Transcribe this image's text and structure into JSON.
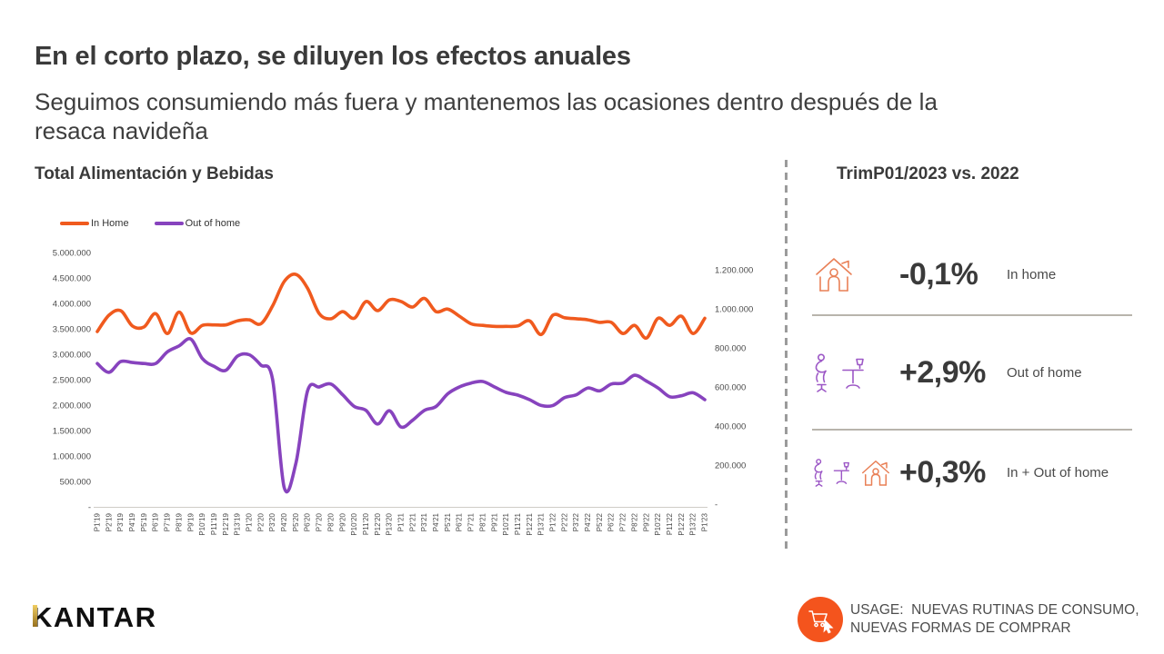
{
  "slide": {
    "title": "En el corto plazo, se diluyen los efectos anuales",
    "subtitle_line1": "Seguimos consumiendo más fuera y mantenemos las ocasiones dentro después de la",
    "subtitle_line2": "resaca navideña"
  },
  "chart_data": {
    "type": "line",
    "title": "Total Alimentación y Bebidas",
    "grid": false,
    "legend_position": "top-left",
    "x": [
      "P1'19",
      "P2'19",
      "P3'19",
      "P4'19",
      "P5'19",
      "P6'19",
      "P7'19",
      "P8'19",
      "P9'19",
      "P10'19",
      "P11'19",
      "P12'19",
      "P13'19",
      "P1'20",
      "P2'20",
      "P3'20",
      "P4'20",
      "P5'20",
      "P6'20",
      "P7'20",
      "P8'20",
      "P9'20",
      "P10'20",
      "P11'20",
      "P12'20",
      "P13'20",
      "P1'21",
      "P2'21",
      "P3'21",
      "P4'21",
      "P5'21",
      "P6'21",
      "P7'21",
      "P8'21",
      "P9'21",
      "P10'21",
      "P11'21",
      "P12'21",
      "P13'21",
      "P1'22",
      "P2'22",
      "P3'22",
      "P4'22",
      "P5'22",
      "P6'22",
      "P7'22",
      "P8'22",
      "P9'22",
      "P10'22",
      "P11'22",
      "P12'22",
      "P13'22",
      "P1'23"
    ],
    "series": [
      {
        "name": "In Home",
        "color": "#F05A1E",
        "axis": "left",
        "values": [
          3450000,
          3770000,
          3860000,
          3560000,
          3540000,
          3800000,
          3410000,
          3830000,
          3420000,
          3570000,
          3580000,
          3580000,
          3660000,
          3680000,
          3600000,
          3950000,
          4430000,
          4570000,
          4300000,
          3800000,
          3700000,
          3840000,
          3710000,
          4040000,
          3860000,
          4070000,
          4040000,
          3930000,
          4100000,
          3840000,
          3890000,
          3750000,
          3600000,
          3570000,
          3550000,
          3550000,
          3560000,
          3660000,
          3390000,
          3770000,
          3720000,
          3700000,
          3680000,
          3630000,
          3630000,
          3410000,
          3570000,
          3320000,
          3710000,
          3570000,
          3750000,
          3410000,
          3710000
        ]
      },
      {
        "name": "Out of home",
        "color": "#8743BE",
        "axis": "right",
        "values": [
          720000,
          675000,
          730000,
          725000,
          720000,
          720000,
          780000,
          810000,
          845000,
          745000,
          705000,
          685000,
          758000,
          765000,
          712000,
          640000,
          85000,
          210000,
          580000,
          600000,
          615000,
          560000,
          500000,
          480000,
          410000,
          478000,
          395000,
          430000,
          480000,
          500000,
          565000,
          600000,
          620000,
          628000,
          600000,
          572000,
          558000,
          535000,
          505000,
          505000,
          545000,
          560000,
          595000,
          580000,
          615000,
          620000,
          660000,
          630000,
          595000,
          550000,
          555000,
          570000,
          535000
        ]
      }
    ],
    "left_axis": {
      "range": [
        0,
        5000000
      ],
      "ticks": [
        "5.000.000",
        "4.500.000",
        "4.000.000",
        "3.500.000",
        "3.000.000",
        "2.500.000",
        "2.000.000",
        "1.500.000",
        "1.000.000",
        "500.000",
        "-"
      ]
    },
    "right_axis": {
      "range": [
        0,
        1200000
      ],
      "ticks": [
        "1.200.000",
        "1.000.000",
        "800.000",
        "600.000",
        "400.000",
        "200.000",
        "-"
      ]
    }
  },
  "panel": {
    "title": "TrimP01/2023 vs. 2022",
    "stats": [
      {
        "icon": "house-person-icon",
        "value": "-0,1%",
        "label": "In home"
      },
      {
        "icon": "person-table-icon",
        "value": "+2,9%",
        "label": "Out of home"
      },
      {
        "icon": "person-table-house-icons",
        "value": "+0,3%",
        "label": "In + Out of home"
      }
    ]
  },
  "footer": {
    "logo": "KANTAR",
    "usage_line1": "USAGE:  NUEVAS RUTINAS DE CONSUMO,",
    "usage_line2": "NUEVAS FORMAS DE COMPRAR"
  },
  "colors": {
    "in_home_orange": "#F05A1E",
    "out_of_home_purple": "#8743BE",
    "icon_orange": "#E98057",
    "icon_purple": "#9C57C6",
    "usage_circle_orange": "#F4541D",
    "kantar_gold": "#C9A227",
    "text_dark": "#3A3A3A",
    "divider_gray": "#9B9B9B",
    "separator_gray": "#B8B4AC"
  }
}
